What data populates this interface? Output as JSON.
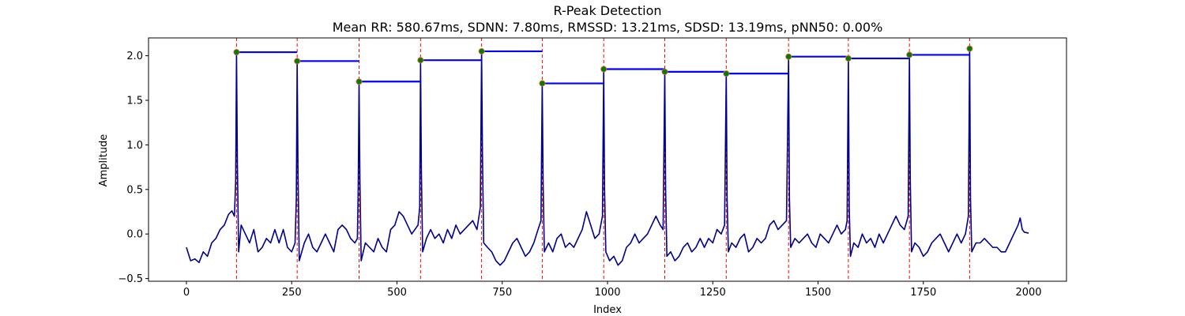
{
  "chart_data": {
    "type": "line",
    "title": "R-Peak Detection",
    "subtitle": "Mean RR: 580.67ms, SDNN: 7.80ms, RMSSD: 13.21ms, SDSD: 13.19ms, pNN50: 0.00%",
    "xlabel": "Index",
    "ylabel": "Amplitude",
    "xlim": [
      -90,
      2090
    ],
    "ylim": [
      -0.53,
      2.2
    ],
    "xticks": [
      0,
      250,
      500,
      750,
      1000,
      1250,
      1500,
      1750,
      2000
    ],
    "xtick_labels": [
      "0",
      "250",
      "500",
      "750",
      "1000",
      "1250",
      "1500",
      "1750",
      "2000"
    ],
    "yticks": [
      -0.5,
      0.0,
      0.5,
      1.0,
      1.5,
      2.0
    ],
    "ytick_labels": [
      "−0.5",
      "0.0",
      "0.5",
      "1.0",
      "1.5",
      "2.0"
    ],
    "grid": false,
    "series": [
      {
        "role": "ecg-signal",
        "color": "#00008b",
        "points": [
          [
            0,
            -0.15
          ],
          [
            10,
            -0.3
          ],
          [
            20,
            -0.28
          ],
          [
            30,
            -0.32
          ],
          [
            40,
            -0.2
          ],
          [
            50,
            -0.25
          ],
          [
            60,
            -0.1
          ],
          [
            70,
            -0.05
          ],
          [
            80,
            0.05
          ],
          [
            90,
            0.1
          ],
          [
            100,
            0.22
          ],
          [
            108,
            0.26
          ],
          [
            114,
            0.2
          ],
          [
            117,
            0.6
          ],
          [
            119,
            2.04
          ],
          [
            121,
            0.8
          ],
          [
            124,
            -0.2
          ],
          [
            130,
            0.1
          ],
          [
            140,
            0.0
          ],
          [
            150,
            -0.1
          ],
          [
            160,
            0.05
          ],
          [
            170,
            -0.2
          ],
          [
            180,
            -0.15
          ],
          [
            190,
            -0.05
          ],
          [
            200,
            -0.1
          ],
          [
            210,
            0.05
          ],
          [
            220,
            -0.1
          ],
          [
            230,
            0.05
          ],
          [
            240,
            -0.15
          ],
          [
            250,
            -0.2
          ],
          [
            258,
            -0.1
          ],
          [
            261,
            0.4
          ],
          [
            263,
            1.94
          ],
          [
            265,
            0.7
          ],
          [
            268,
            -0.3
          ],
          [
            280,
            -0.1
          ],
          [
            290,
            0.0
          ],
          [
            300,
            -0.15
          ],
          [
            310,
            -0.2
          ],
          [
            320,
            -0.1
          ],
          [
            330,
            0.0
          ],
          [
            340,
            -0.1
          ],
          [
            350,
            -0.2
          ],
          [
            360,
            0.05
          ],
          [
            370,
            0.1
          ],
          [
            380,
            0.05
          ],
          [
            390,
            -0.05
          ],
          [
            400,
            -0.1
          ],
          [
            406,
            -0.05
          ],
          [
            408,
            0.5
          ],
          [
            410,
            1.71
          ],
          [
            412,
            0.6
          ],
          [
            415,
            -0.3
          ],
          [
            425,
            -0.1
          ],
          [
            435,
            -0.15
          ],
          [
            445,
            -0.2
          ],
          [
            455,
            -0.05
          ],
          [
            465,
            -0.15
          ],
          [
            475,
            -0.2
          ],
          [
            485,
            0.05
          ],
          [
            495,
            0.1
          ],
          [
            505,
            0.25
          ],
          [
            515,
            0.2
          ],
          [
            525,
            0.1
          ],
          [
            535,
            0.0
          ],
          [
            550,
            0.1
          ],
          [
            554,
            0.3
          ],
          [
            556,
            1.95
          ],
          [
            558,
            0.7
          ],
          [
            561,
            -0.2
          ],
          [
            570,
            -0.05
          ],
          [
            580,
            0.05
          ],
          [
            590,
            -0.05
          ],
          [
            600,
            0.0
          ],
          [
            610,
            -0.1
          ],
          [
            620,
            0.05
          ],
          [
            630,
            -0.05
          ],
          [
            640,
            0.1
          ],
          [
            650,
            0.0
          ],
          [
            660,
            0.05
          ],
          [
            670,
            0.1
          ],
          [
            680,
            0.15
          ],
          [
            690,
            0.05
          ],
          [
            698,
            0.3
          ],
          [
            701,
            2.05
          ],
          [
            703,
            0.9
          ],
          [
            706,
            -0.1
          ],
          [
            715,
            -0.15
          ],
          [
            725,
            -0.2
          ],
          [
            735,
            -0.3
          ],
          [
            745,
            -0.35
          ],
          [
            755,
            -0.3
          ],
          [
            765,
            -0.2
          ],
          [
            775,
            -0.1
          ],
          [
            785,
            -0.05
          ],
          [
            795,
            -0.15
          ],
          [
            805,
            -0.25
          ],
          [
            815,
            -0.2
          ],
          [
            825,
            -0.1
          ],
          [
            835,
            0.05
          ],
          [
            842,
            0.15
          ],
          [
            845,
            1.69
          ],
          [
            847,
            0.6
          ],
          [
            850,
            -0.2
          ],
          [
            860,
            -0.1
          ],
          [
            870,
            -0.2
          ],
          [
            880,
            -0.05
          ],
          [
            890,
            0.0
          ],
          [
            900,
            -0.15
          ],
          [
            910,
            -0.1
          ],
          [
            920,
            -0.15
          ],
          [
            930,
            -0.05
          ],
          [
            940,
            0.05
          ],
          [
            950,
            0.25
          ],
          [
            960,
            0.1
          ],
          [
            970,
            -0.05
          ],
          [
            980,
            0.0
          ],
          [
            988,
            0.2
          ],
          [
            991,
            1.85
          ],
          [
            993,
            0.5
          ],
          [
            996,
            -0.2
          ],
          [
            1005,
            -0.3
          ],
          [
            1015,
            -0.25
          ],
          [
            1025,
            -0.35
          ],
          [
            1035,
            -0.3
          ],
          [
            1045,
            -0.15
          ],
          [
            1055,
            -0.1
          ],
          [
            1065,
            0.0
          ],
          [
            1075,
            -0.1
          ],
          [
            1085,
            -0.05
          ],
          [
            1095,
            0.0
          ],
          [
            1105,
            0.1
          ],
          [
            1115,
            0.2
          ],
          [
            1125,
            0.1
          ],
          [
            1132,
            0.05
          ],
          [
            1136,
            1.82
          ],
          [
            1138,
            0.5
          ],
          [
            1141,
            -0.25
          ],
          [
            1150,
            -0.2
          ],
          [
            1160,
            -0.3
          ],
          [
            1170,
            -0.25
          ],
          [
            1180,
            -0.15
          ],
          [
            1190,
            -0.1
          ],
          [
            1200,
            -0.2
          ],
          [
            1210,
            -0.15
          ],
          [
            1220,
            -0.05
          ],
          [
            1230,
            -0.15
          ],
          [
            1240,
            -0.05
          ],
          [
            1250,
            -0.1
          ],
          [
            1260,
            0.05
          ],
          [
            1270,
            0.0
          ],
          [
            1278,
            0.1
          ],
          [
            1282,
            1.8
          ],
          [
            1284,
            0.4
          ],
          [
            1287,
            -0.2
          ],
          [
            1295,
            -0.1
          ],
          [
            1305,
            -0.15
          ],
          [
            1315,
            -0.05
          ],
          [
            1325,
            0.0
          ],
          [
            1335,
            -0.2
          ],
          [
            1345,
            -0.15
          ],
          [
            1355,
            -0.05
          ],
          [
            1365,
            -0.1
          ],
          [
            1375,
            -0.05
          ],
          [
            1385,
            0.1
          ],
          [
            1395,
            0.15
          ],
          [
            1405,
            0.05
          ],
          [
            1415,
            0.1
          ],
          [
            1425,
            0.15
          ],
          [
            1430,
            1.99
          ],
          [
            1432,
            0.4
          ],
          [
            1435,
            -0.15
          ],
          [
            1445,
            -0.05
          ],
          [
            1455,
            -0.1
          ],
          [
            1465,
            -0.05
          ],
          [
            1475,
            0.0
          ],
          [
            1485,
            -0.1
          ],
          [
            1495,
            -0.15
          ],
          [
            1505,
            0.0
          ],
          [
            1515,
            -0.05
          ],
          [
            1525,
            -0.1
          ],
          [
            1535,
            0.0
          ],
          [
            1545,
            0.1
          ],
          [
            1555,
            0.0
          ],
          [
            1565,
            0.05
          ],
          [
            1569,
            0.15
          ],
          [
            1572,
            1.97
          ],
          [
            1574,
            0.3
          ],
          [
            1577,
            -0.25
          ],
          [
            1585,
            -0.1
          ],
          [
            1595,
            -0.15
          ],
          [
            1605,
            0.0
          ],
          [
            1615,
            -0.1
          ],
          [
            1625,
            -0.05
          ],
          [
            1635,
            -0.15
          ],
          [
            1645,
            0.0
          ],
          [
            1655,
            -0.1
          ],
          [
            1665,
            0.0
          ],
          [
            1675,
            0.1
          ],
          [
            1685,
            0.2
          ],
          [
            1695,
            0.1
          ],
          [
            1705,
            0.05
          ],
          [
            1714,
            0.2
          ],
          [
            1717,
            2.01
          ],
          [
            1719,
            0.6
          ],
          [
            1722,
            -0.2
          ],
          [
            1730,
            -0.1
          ],
          [
            1740,
            -0.15
          ],
          [
            1750,
            -0.25
          ],
          [
            1760,
            -0.2
          ],
          [
            1770,
            -0.1
          ],
          [
            1780,
            -0.05
          ],
          [
            1790,
            0.0
          ],
          [
            1800,
            -0.1
          ],
          [
            1810,
            -0.2
          ],
          [
            1820,
            -0.1
          ],
          [
            1830,
            0.0
          ],
          [
            1840,
            -0.1
          ],
          [
            1850,
            0.0
          ],
          [
            1857,
            0.2
          ],
          [
            1860,
            2.08
          ],
          [
            1862,
            0.4
          ],
          [
            1865,
            -0.2
          ],
          [
            1875,
            -0.1
          ],
          [
            1885,
            -0.1
          ],
          [
            1895,
            -0.05
          ],
          [
            1905,
            -0.1
          ],
          [
            1915,
            -0.15
          ],
          [
            1925,
            -0.15
          ],
          [
            1935,
            -0.2
          ],
          [
            1945,
            -0.2
          ],
          [
            1955,
            -0.1
          ],
          [
            1965,
            0.0
          ],
          [
            1975,
            0.1
          ],
          [
            1980,
            0.18
          ],
          [
            1985,
            0.05
          ],
          [
            1990,
            0.02
          ],
          [
            2000,
            0.01
          ]
        ]
      }
    ],
    "r_peaks": {
      "x": [
        119,
        263,
        410,
        556,
        701,
        845,
        991,
        1136,
        1282,
        1430,
        1572,
        1717,
        1860
      ],
      "y": [
        2.04,
        1.94,
        1.71,
        1.95,
        2.05,
        1.69,
        1.85,
        1.82,
        1.8,
        1.99,
        1.97,
        2.01,
        2.08
      ],
      "marker_color": "#008000",
      "marker_edge": "#ff6347",
      "line_color": "#ff0000"
    },
    "rr_segments": {
      "color": "#0000ff",
      "segments": [
        [
          119,
          263,
          2.04
        ],
        [
          263,
          410,
          1.94
        ],
        [
          410,
          556,
          1.71
        ],
        [
          556,
          701,
          1.95
        ],
        [
          701,
          845,
          2.05
        ],
        [
          845,
          991,
          1.69
        ],
        [
          991,
          1136,
          1.85
        ],
        [
          1136,
          1282,
          1.82
        ],
        [
          1282,
          1430,
          1.8
        ],
        [
          1430,
          1572,
          1.99
        ],
        [
          1572,
          1717,
          1.97
        ],
        [
          1717,
          1860,
          2.01
        ]
      ]
    }
  }
}
